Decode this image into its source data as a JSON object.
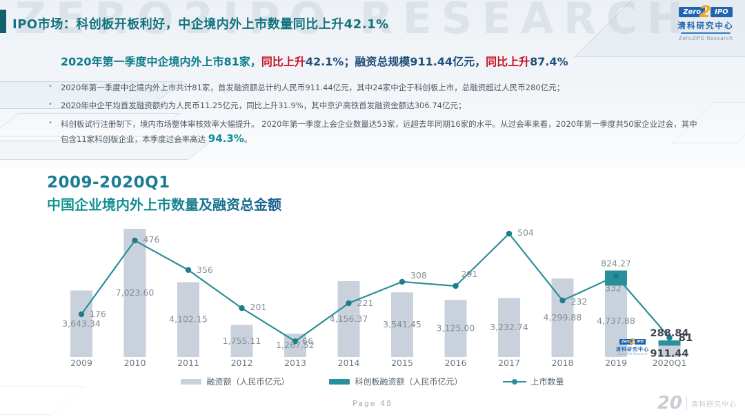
{
  "page": {
    "watermark": "ZERO2IPO RESEARCH",
    "title": "IPO市场：科创板开板利好，中企境内外上市数量同比上升42.1%",
    "page_label": "Page 48"
  },
  "brand": {
    "zero": "Zero",
    "two": "2",
    "ipo": "IPO",
    "name_cn": "清科研究中心",
    "name_en": "Zero2IPO Research",
    "footer_20": "20"
  },
  "summary": {
    "segments": [
      {
        "text": "2020年第一季度中企境内外上市81家，",
        "color": "#0e7c8c"
      },
      {
        "text": "同比上升",
        "color": "#c41220"
      },
      {
        "text": "42.1%；",
        "color": "#1f4e79"
      },
      {
        "text": "融资总规模911.44亿元，",
        "color": "#1f4e79"
      },
      {
        "text": "同比上升",
        "color": "#c41220"
      },
      {
        "text": "87.4%",
        "color": "#1f4e79"
      }
    ]
  },
  "bullets": [
    {
      "segments": [
        {
          "text": "2020年第一季度中企境内外上市共计81家，首发融资额总计约人民币911.44亿元，其中24家中企于科创板上市，总融资超过人民币280亿元；"
        }
      ]
    },
    {
      "segments": [
        {
          "text": "2020年中企平均首发融资额约为人民币11.25亿元，同比上升31.9%，其中京沪高铁首发融资金额达306.74亿元；"
        }
      ]
    },
    {
      "segments": [
        {
          "text": "科创板试行注册制下，境内市场整体审核效率大幅提升。 2020年第一季度上会企业数量达53家，远超去年同期16家的水平。从过会率来看，2020年第一季度共50家企业过会，其中包含11家科创板企业，本季度过会率高达 "
        },
        {
          "text": "94.3%",
          "highlight": true
        },
        {
          "text": "。"
        }
      ]
    }
  ],
  "chart": {
    "title_line1": "2009-2020Q1",
    "title_line2": "中国企业境内外上市数量及融资总金额",
    "legend": [
      {
        "label": "融资额（人民币亿元）",
        "swatch": "bar",
        "color": "#c9d1dd"
      },
      {
        "label": "科创板融资额（人民币亿元）",
        "swatch": "bar",
        "color": "#27909b"
      },
      {
        "label": "上市数量",
        "swatch": "line",
        "color": "#2a8f96"
      }
    ]
  },
  "chart_data": {
    "type": "bar+line",
    "title": "2009-2020Q1 中国企业境内外上市数量及融资总金额",
    "categories": [
      "2009",
      "2010",
      "2011",
      "2012",
      "2013",
      "2014",
      "2015",
      "2016",
      "2017",
      "2018",
      "2019",
      "2020Q1"
    ],
    "series": [
      {
        "name": "融资额（人民币亿元）",
        "type": "bar",
        "color": "#c9d1dd",
        "values": [
          3643.34,
          7023.6,
          4102.15,
          1755.11,
          1267.52,
          4156.37,
          3541.45,
          3125.0,
          3232.74,
          4299.88,
          4737.88,
          911.44
        ],
        "labels": [
          "3,643.34",
          "7,023.60",
          "4,102.15",
          "1,755.11",
          "1,267.52",
          "4,156.37",
          "3,541.45",
          "3,125.00",
          "3,232.74",
          "4,299.88",
          "4,737.88",
          "911.44"
        ]
      },
      {
        "name": "科创板融资额（人民币亿元）",
        "type": "bar-overlay",
        "color": "#27909b",
        "values": [
          null,
          null,
          null,
          null,
          null,
          null,
          null,
          null,
          null,
          null,
          824.27,
          288.84
        ],
        "labels": [
          null,
          null,
          null,
          null,
          null,
          null,
          null,
          null,
          null,
          null,
          "824.27",
          "288.84"
        ]
      },
      {
        "name": "上市数量",
        "type": "line",
        "color": "#2a8f96",
        "values": [
          176,
          476,
          356,
          201,
          66,
          221,
          308,
          291,
          504,
          232,
          332,
          81
        ]
      }
    ],
    "bar_value_range": [
      0,
      7500
    ],
    "count_range": [
      0,
      550
    ],
    "grid": false,
    "value_axis_visible": false,
    "legend_position": "bottom",
    "data_labels": true
  }
}
